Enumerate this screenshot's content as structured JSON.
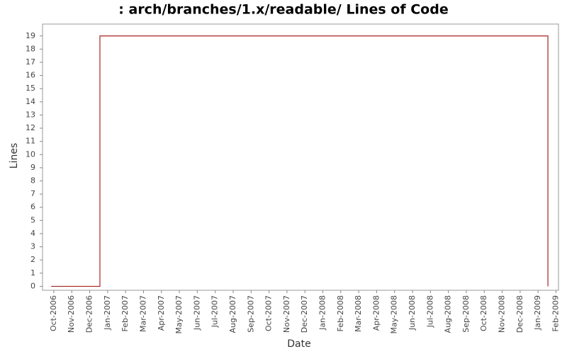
{
  "chart_data": {
    "type": "line",
    "title": ": arch/branches/1.x/readable/ Lines of Code",
    "x_label": "Date",
    "y_label": "Lines",
    "x": [
      -0.15,
      2.57,
      2.57,
      27.55,
      27.55
    ],
    "series": [
      {
        "name": "Lines",
        "color": "#aa2222",
        "values": [
          0,
          0,
          19,
          19,
          0
        ]
      }
    ],
    "xlim": [
      -0.63,
      28.14
    ],
    "xticks": [
      {
        "value": 0,
        "label": "Oct-2006"
      },
      {
        "value": 1,
        "label": "Nov-2006"
      },
      {
        "value": 2,
        "label": "Dec-2006"
      },
      {
        "value": 3,
        "label": "Jan-2007"
      },
      {
        "value": 4,
        "label": "Feb-2007"
      },
      {
        "value": 5,
        "label": "Mar-2007"
      },
      {
        "value": 6,
        "label": "Apr-2007"
      },
      {
        "value": 7,
        "label": "May-2007"
      },
      {
        "value": 8,
        "label": "Jun-2007"
      },
      {
        "value": 9,
        "label": "Jul-2007"
      },
      {
        "value": 10,
        "label": "Aug-2007"
      },
      {
        "value": 11,
        "label": "Sep-2007"
      },
      {
        "value": 12,
        "label": "Oct-2007"
      },
      {
        "value": 13,
        "label": "Nov-2007"
      },
      {
        "value": 14,
        "label": "Dec-2007"
      },
      {
        "value": 15,
        "label": "Jan-2008"
      },
      {
        "value": 16,
        "label": "Feb-2008"
      },
      {
        "value": 17,
        "label": "Mar-2008"
      },
      {
        "value": 18,
        "label": "Apr-2008"
      },
      {
        "value": 19,
        "label": "May-2008"
      },
      {
        "value": 20,
        "label": "Jun-2008"
      },
      {
        "value": 21,
        "label": "Jul-2008"
      },
      {
        "value": 22,
        "label": "Aug-2008"
      },
      {
        "value": 23,
        "label": "Sep-2008"
      },
      {
        "value": 24,
        "label": "Oct-2008"
      },
      {
        "value": 25,
        "label": "Nov-2008"
      },
      {
        "value": 26,
        "label": "Dec-2008"
      },
      {
        "value": 27,
        "label": "Jan-2009"
      },
      {
        "value": 28,
        "label": "Feb-2009"
      }
    ],
    "ylim": [
      -0.3,
      19.9
    ],
    "yticks": [
      0,
      1,
      2,
      3,
      4,
      5,
      6,
      7,
      8,
      9,
      10,
      11,
      12,
      13,
      14,
      15,
      16,
      17,
      18,
      19
    ],
    "grid": false
  }
}
